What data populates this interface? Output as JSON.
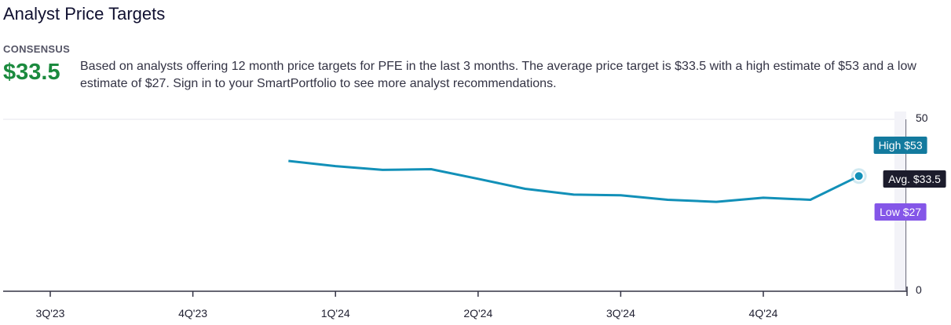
{
  "header": {
    "title": "Analyst Price Targets",
    "consensus_label": "CONSENSUS",
    "consensus_value": "$33.5",
    "description": "Based on analysts offering 12 month price targets for PFE in the last 3 months. The average price target is $33.5 with a high estimate of $53 and a low estimate of $27. Sign in to your SmartPortfolio to see more analyst recommendations."
  },
  "colors": {
    "line": "#1290b8",
    "high_badge": "#137a9e",
    "avg_badge": "#1c1c2c",
    "low_badge": "#8456e8",
    "consensus": "#1b8a3e",
    "shade": "#f3f3f8"
  },
  "chart_data": {
    "type": "line",
    "title": "",
    "xlabel": "",
    "ylabel": "",
    "ylim": [
      0,
      50
    ],
    "y_ticks": [
      "50",
      "0"
    ],
    "categories": [
      "3Q'23",
      "4Q'23",
      "1Q'24",
      "2Q'24",
      "3Q'24",
      "4Q'24"
    ],
    "series": [
      {
        "x": [
          2.67,
          3.0,
          3.33,
          3.67,
          4.0,
          4.33,
          4.67,
          5.0,
          5.33,
          5.67,
          6.0,
          6.33,
          6.67
        ],
        "values": [
          37.9,
          36.4,
          35.3,
          35.5,
          32.7,
          29.8,
          28.1,
          27.9,
          26.6,
          26.0,
          27.2,
          26.6,
          33.5
        ]
      }
    ],
    "forecast_x": 7.0,
    "annotations": {
      "high": {
        "label": "High $53",
        "value": 53
      },
      "average": {
        "label": "Avg. $33.5",
        "value": 33.5
      },
      "low": {
        "label": "Low $27",
        "value": 27
      }
    },
    "grid": true,
    "legend": "none"
  }
}
